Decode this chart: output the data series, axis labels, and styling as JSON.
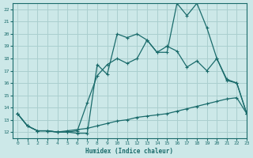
{
  "xlabel": "Humidex (Indice chaleur)",
  "bg_color": "#cce8e8",
  "grid_color": "#aacfcf",
  "line_color": "#1a6b6b",
  "xlim": [
    -0.5,
    23
  ],
  "ylim": [
    11.5,
    22.5
  ],
  "xticks": [
    0,
    1,
    2,
    3,
    4,
    5,
    6,
    7,
    8,
    9,
    10,
    11,
    12,
    13,
    14,
    15,
    16,
    17,
    18,
    19,
    20,
    21,
    22,
    23
  ],
  "yticks": [
    12,
    13,
    14,
    15,
    16,
    17,
    18,
    19,
    20,
    21,
    22
  ],
  "line1_x": [
    0,
    1,
    2,
    3,
    4,
    5,
    6,
    7,
    8,
    9,
    10,
    11,
    12,
    13,
    14,
    15,
    16,
    17,
    18,
    19,
    20,
    21,
    22,
    23
  ],
  "line1_y": [
    13.5,
    12.5,
    12.1,
    12.1,
    12.0,
    12.0,
    11.9,
    11.9,
    17.5,
    16.7,
    20.0,
    19.7,
    20.0,
    19.5,
    18.5,
    18.5,
    22.5,
    21.5,
    22.5,
    20.5,
    18.0,
    16.2,
    16.0,
    13.5
  ],
  "line2_x": [
    0,
    1,
    2,
    3,
    4,
    5,
    6,
    7,
    8,
    9,
    10,
    11,
    12,
    13,
    14,
    15,
    16,
    17,
    18,
    19,
    20,
    21,
    22,
    23
  ],
  "line2_y": [
    13.5,
    12.5,
    12.1,
    12.1,
    12.0,
    12.0,
    12.1,
    14.4,
    16.6,
    17.5,
    18.0,
    17.6,
    18.0,
    19.5,
    18.5,
    19.0,
    18.6,
    17.3,
    17.8,
    17.0,
    18.0,
    16.3,
    16.0,
    13.5
  ],
  "line3_x": [
    0,
    1,
    2,
    3,
    4,
    5,
    6,
    7,
    8,
    9,
    10,
    11,
    12,
    13,
    14,
    15,
    16,
    17,
    18,
    19,
    20,
    21,
    22,
    23
  ],
  "line3_y": [
    13.5,
    12.5,
    12.1,
    12.1,
    12.0,
    12.1,
    12.2,
    12.3,
    12.5,
    12.7,
    12.9,
    13.0,
    13.2,
    13.3,
    13.4,
    13.5,
    13.7,
    13.9,
    14.1,
    14.3,
    14.5,
    14.7,
    14.8,
    13.5
  ]
}
